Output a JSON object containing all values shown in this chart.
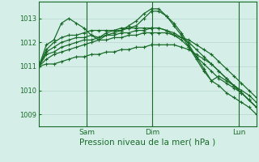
{
  "title": "Pression niveau de la mer( hPa )",
  "bg_color": "#d5efe8",
  "grid_color": "#b8d8ce",
  "line_color": "#1a6b2a",
  "ylim": [
    1008.5,
    1013.7
  ],
  "yticks": [
    1009,
    1010,
    1011,
    1012,
    1013
  ],
  "day_positions": [
    0.22,
    0.52,
    0.92
  ],
  "day_labels": [
    "Sam",
    "Dim",
    "Lun"
  ],
  "series": [
    [
      1011.0,
      1011.9,
      1012.1,
      1012.8,
      1013.0,
      1012.8,
      1012.6,
      1012.3,
      1012.1,
      1012.3,
      1012.4,
      1012.5,
      1012.7,
      1012.9,
      1013.2,
      1013.4,
      1013.4,
      1013.1,
      1012.7,
      1012.3,
      1011.8,
      1011.3,
      1010.8,
      1010.4,
      1010.6,
      1010.4,
      1010.2,
      1010.0,
      1009.8,
      1009.5
    ],
    [
      1011.0,
      1011.7,
      1012.0,
      1012.2,
      1012.3,
      1012.3,
      1012.4,
      1012.5,
      1012.5,
      1012.5,
      1012.5,
      1012.6,
      1012.6,
      1012.6,
      1012.6,
      1012.6,
      1012.6,
      1012.5,
      1012.3,
      1012.1,
      1011.8,
      1011.4,
      1011.1,
      1010.8,
      1010.5,
      1010.3,
      1010.1,
      1009.9,
      1009.6,
      1009.3
    ],
    [
      1011.0,
      1011.6,
      1011.8,
      1012.0,
      1012.1,
      1012.2,
      1012.2,
      1012.3,
      1012.2,
      1012.4,
      1012.5,
      1012.5,
      1012.6,
      1012.7,
      1013.0,
      1013.3,
      1013.3,
      1013.1,
      1012.8,
      1012.4,
      1011.9,
      1011.4,
      1010.9,
      1010.4,
      1010.2,
      1009.9,
      1009.7,
      1009.5,
      1009.3,
      1009.0
    ],
    [
      1011.0,
      1011.5,
      1011.6,
      1011.8,
      1011.9,
      1012.0,
      1012.1,
      1012.1,
      1012.2,
      1012.3,
      1012.3,
      1012.4,
      1012.4,
      1012.5,
      1012.5,
      1012.6,
      1012.6,
      1012.5,
      1012.4,
      1012.2,
      1012.0,
      1011.7,
      1011.4,
      1011.1,
      1010.8,
      1010.5,
      1010.2,
      1009.9,
      1009.6,
      1009.3
    ],
    [
      1011.0,
      1011.3,
      1011.5,
      1011.6,
      1011.7,
      1011.8,
      1011.9,
      1012.0,
      1012.1,
      1012.1,
      1012.2,
      1012.2,
      1012.3,
      1012.3,
      1012.4,
      1012.4,
      1012.4,
      1012.4,
      1012.3,
      1012.2,
      1012.1,
      1011.9,
      1011.7,
      1011.5,
      1011.2,
      1010.9,
      1010.6,
      1010.3,
      1010.0,
      1009.7
    ],
    [
      1011.0,
      1011.1,
      1011.1,
      1011.2,
      1011.3,
      1011.4,
      1011.4,
      1011.5,
      1011.5,
      1011.6,
      1011.6,
      1011.7,
      1011.7,
      1011.8,
      1011.8,
      1011.9,
      1011.9,
      1011.9,
      1011.9,
      1011.8,
      1011.7,
      1011.5,
      1011.3,
      1011.1,
      1010.8,
      1010.5,
      1010.2,
      1009.9,
      1009.6,
      1009.3
    ]
  ]
}
